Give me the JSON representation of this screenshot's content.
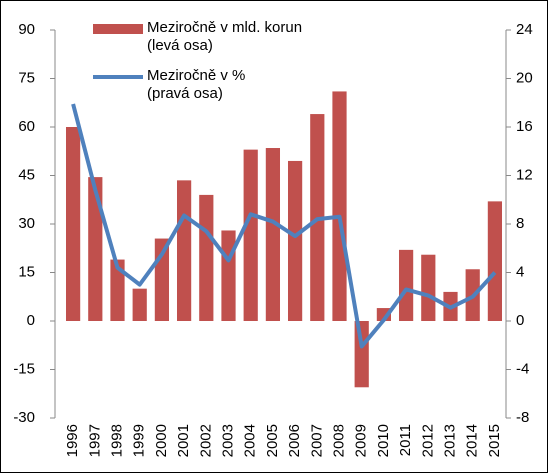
{
  "chart_data": {
    "type": "bar_line",
    "categories": [
      "1996",
      "1997",
      "1998",
      "1999",
      "2000",
      "2001",
      "2002",
      "2003",
      "2004",
      "2005",
      "2006",
      "2007",
      "2008",
      "2009",
      "2010",
      "2011",
      "2012",
      "2013",
      "2014",
      "2015"
    ],
    "series": [
      {
        "name": "Meziročně v mld. korun\n(levá osa)",
        "color": "#c0504d",
        "type": "bar",
        "axis": "y",
        "values": [
          60,
          44.5,
          19,
          10,
          25.5,
          43.5,
          39,
          28,
          53,
          53.5,
          49.5,
          64,
          71,
          -20.5,
          4,
          22,
          20.5,
          9,
          16,
          37
        ]
      },
      {
        "name": "Meziročně v %\n(pravá osa)",
        "color": "#4f81bd",
        "type": "line",
        "axis": "y2",
        "values": [
          17.9,
          10.8,
          4.4,
          3.0,
          5.5,
          8.7,
          7.4,
          5.0,
          8.8,
          8.2,
          7.0,
          8.4,
          8.6,
          -2.1,
          0.1,
          2.6,
          2.1,
          1.1,
          2.0,
          4.0
        ]
      }
    ],
    "ylim": [
      -30,
      90
    ],
    "yticks": [
      -30,
      -15,
      0,
      15,
      30,
      45,
      60,
      75,
      90
    ],
    "y2lim": [
      -8,
      24
    ],
    "y2ticks": [
      -8,
      -4,
      0,
      4,
      8,
      12,
      16,
      20,
      24
    ]
  }
}
